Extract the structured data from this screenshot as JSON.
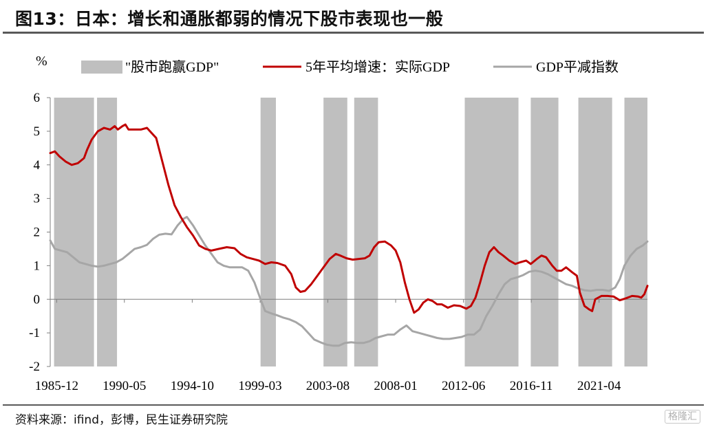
{
  "header": {
    "title": "图13：日本：增长和通胀都弱的情况下股市表现也一般"
  },
  "footer": {
    "source": "资料来源：ifind，彭博，民生证券研究院",
    "watermark": "格隆汇"
  },
  "chart_data": {
    "type": "line",
    "unit_label": "%",
    "ylim": [
      -2,
      6
    ],
    "yticks": [
      "6",
      "5",
      "4",
      "3",
      "2",
      "1",
      "0",
      "-1",
      "-2"
    ],
    "xlim": [
      1985.5,
      2024.4
    ],
    "xticks": [
      {
        "label": "1985-12",
        "t": 1985.92
      },
      {
        "label": "1990-05",
        "t": 1990.33
      },
      {
        "label": "1994-10",
        "t": 1994.75
      },
      {
        "label": "1999-03",
        "t": 1999.17
      },
      {
        "label": "2003-08",
        "t": 2003.58
      },
      {
        "label": "2008-01",
        "t": 2008.0
      },
      {
        "label": "2012-06",
        "t": 2012.42
      },
      {
        "label": "2016-11",
        "t": 2016.83
      },
      {
        "label": "2021-04",
        "t": 2021.25
      }
    ],
    "legend": {
      "placement": "top",
      "shade_label": "\"股市跑赢GDP\""
    },
    "colors": {
      "shade": "#bfbfbf",
      "real_gdp": "#c00000",
      "deflator": "#a6a6a6",
      "axis": "#7f7f7f"
    },
    "shaded_periods": [
      [
        1985.75,
        1988.35
      ],
      [
        1988.55,
        1989.85
      ],
      [
        1999.2,
        2000.2
      ],
      [
        2003.3,
        2004.85
      ],
      [
        2005.3,
        2006.85
      ],
      [
        2012.5,
        2016.0
      ],
      [
        2016.8,
        2018.6
      ],
      [
        2019.9,
        2022.1
      ],
      [
        2022.9,
        2024.7
      ]
    ],
    "series": [
      {
        "name": "5年平均增速：实际GDP",
        "key": "real_gdp",
        "points": [
          [
            1985.5,
            4.35
          ],
          [
            1985.8,
            4.4
          ],
          [
            1986.1,
            4.25
          ],
          [
            1986.5,
            4.1
          ],
          [
            1986.9,
            4.0
          ],
          [
            1987.3,
            4.05
          ],
          [
            1987.7,
            4.2
          ],
          [
            1987.9,
            4.45
          ],
          [
            1988.2,
            4.75
          ],
          [
            1988.6,
            5.0
          ],
          [
            1989.0,
            5.1
          ],
          [
            1989.4,
            5.05
          ],
          [
            1989.7,
            5.15
          ],
          [
            1989.9,
            5.05
          ],
          [
            1990.2,
            5.15
          ],
          [
            1990.4,
            5.2
          ],
          [
            1990.6,
            5.05
          ],
          [
            1991.0,
            5.05
          ],
          [
            1991.4,
            5.05
          ],
          [
            1991.8,
            5.1
          ],
          [
            1992.0,
            5.0
          ],
          [
            1992.4,
            4.8
          ],
          [
            1992.8,
            4.1
          ],
          [
            1993.2,
            3.4
          ],
          [
            1993.6,
            2.8
          ],
          [
            1994.0,
            2.45
          ],
          [
            1994.4,
            2.15
          ],
          [
            1994.8,
            1.9
          ],
          [
            1995.2,
            1.6
          ],
          [
            1995.6,
            1.5
          ],
          [
            1996.0,
            1.45
          ],
          [
            1996.5,
            1.5
          ],
          [
            1997.0,
            1.55
          ],
          [
            1997.5,
            1.52
          ],
          [
            1997.9,
            1.35
          ],
          [
            1998.3,
            1.25
          ],
          [
            1998.7,
            1.2
          ],
          [
            1999.1,
            1.15
          ],
          [
            1999.5,
            1.05
          ],
          [
            1999.9,
            1.1
          ],
          [
            2000.3,
            1.08
          ],
          [
            2000.8,
            1.0
          ],
          [
            2001.2,
            0.75
          ],
          [
            2001.5,
            0.35
          ],
          [
            2001.8,
            0.22
          ],
          [
            2002.1,
            0.25
          ],
          [
            2002.5,
            0.45
          ],
          [
            2002.9,
            0.7
          ],
          [
            2003.3,
            0.95
          ],
          [
            2003.7,
            1.2
          ],
          [
            2004.1,
            1.35
          ],
          [
            2004.4,
            1.3
          ],
          [
            2004.8,
            1.22
          ],
          [
            2005.2,
            1.18
          ],
          [
            2005.6,
            1.2
          ],
          [
            2006.0,
            1.22
          ],
          [
            2006.3,
            1.3
          ],
          [
            2006.6,
            1.55
          ],
          [
            2006.9,
            1.7
          ],
          [
            2007.3,
            1.72
          ],
          [
            2007.7,
            1.6
          ],
          [
            2008.0,
            1.45
          ],
          [
            2008.3,
            1.1
          ],
          [
            2008.6,
            0.5
          ],
          [
            2008.9,
            0.0
          ],
          [
            2009.2,
            -0.4
          ],
          [
            2009.5,
            -0.3
          ],
          [
            2009.8,
            -0.1
          ],
          [
            2010.1,
            0.0
          ],
          [
            2010.4,
            -0.05
          ],
          [
            2010.7,
            -0.15
          ],
          [
            2011.0,
            -0.15
          ],
          [
            2011.4,
            -0.25
          ],
          [
            2011.8,
            -0.18
          ],
          [
            2012.2,
            -0.2
          ],
          [
            2012.6,
            -0.28
          ],
          [
            2012.9,
            -0.2
          ],
          [
            2013.2,
            0.05
          ],
          [
            2013.5,
            0.5
          ],
          [
            2013.8,
            1.0
          ],
          [
            2014.1,
            1.4
          ],
          [
            2014.4,
            1.55
          ],
          [
            2014.7,
            1.4
          ],
          [
            2015.0,
            1.3
          ],
          [
            2015.4,
            1.15
          ],
          [
            2015.8,
            1.05
          ],
          [
            2016.1,
            1.1
          ],
          [
            2016.5,
            1.15
          ],
          [
            2016.8,
            1.05
          ],
          [
            2017.2,
            1.2
          ],
          [
            2017.5,
            1.3
          ],
          [
            2017.8,
            1.25
          ],
          [
            2018.2,
            1.0
          ],
          [
            2018.5,
            0.85
          ],
          [
            2018.8,
            0.85
          ],
          [
            2019.1,
            0.95
          ],
          [
            2019.5,
            0.8
          ],
          [
            2019.8,
            0.7
          ],
          [
            2020.0,
            0.2
          ],
          [
            2020.3,
            -0.2
          ],
          [
            2020.6,
            -0.3
          ],
          [
            2020.8,
            -0.35
          ],
          [
            2021.0,
            0.0
          ],
          [
            2021.4,
            0.1
          ],
          [
            2021.8,
            0.1
          ],
          [
            2022.2,
            0.08
          ],
          [
            2022.6,
            -0.03
          ],
          [
            2023.0,
            0.03
          ],
          [
            2023.4,
            0.1
          ],
          [
            2023.8,
            0.08
          ],
          [
            2024.0,
            0.05
          ],
          [
            2024.2,
            0.15
          ],
          [
            2024.4,
            0.4
          ]
        ]
      },
      {
        "name": "GDP平减指数",
        "key": "deflator",
        "points": [
          [
            1985.5,
            1.75
          ],
          [
            1985.8,
            1.5
          ],
          [
            1986.2,
            1.45
          ],
          [
            1986.6,
            1.4
          ],
          [
            1987.0,
            1.25
          ],
          [
            1987.4,
            1.1
          ],
          [
            1987.8,
            1.05
          ],
          [
            1988.2,
            1.0
          ],
          [
            1988.6,
            0.97
          ],
          [
            1989.0,
            1.0
          ],
          [
            1989.4,
            1.05
          ],
          [
            1989.8,
            1.1
          ],
          [
            1990.2,
            1.2
          ],
          [
            1990.6,
            1.35
          ],
          [
            1991.0,
            1.5
          ],
          [
            1991.4,
            1.55
          ],
          [
            1991.8,
            1.62
          ],
          [
            1992.2,
            1.8
          ],
          [
            1992.6,
            1.92
          ],
          [
            1993.0,
            1.95
          ],
          [
            1993.4,
            1.93
          ],
          [
            1993.8,
            2.2
          ],
          [
            1994.2,
            2.4
          ],
          [
            1994.4,
            2.45
          ],
          [
            1994.8,
            2.2
          ],
          [
            1995.2,
            1.9
          ],
          [
            1995.6,
            1.6
          ],
          [
            1996.0,
            1.35
          ],
          [
            1996.4,
            1.1
          ],
          [
            1996.8,
            1.0
          ],
          [
            1997.2,
            0.95
          ],
          [
            1997.6,
            0.95
          ],
          [
            1998.0,
            0.95
          ],
          [
            1998.4,
            0.85
          ],
          [
            1998.8,
            0.5
          ],
          [
            1999.2,
            0.0
          ],
          [
            1999.5,
            -0.35
          ],
          [
            1999.9,
            -0.42
          ],
          [
            2000.3,
            -0.48
          ],
          [
            2000.7,
            -0.55
          ],
          [
            2001.1,
            -0.6
          ],
          [
            2001.5,
            -0.68
          ],
          [
            2001.9,
            -0.8
          ],
          [
            2002.3,
            -1.0
          ],
          [
            2002.7,
            -1.2
          ],
          [
            2003.1,
            -1.28
          ],
          [
            2003.5,
            -1.35
          ],
          [
            2003.9,
            -1.38
          ],
          [
            2004.3,
            -1.38
          ],
          [
            2004.7,
            -1.3
          ],
          [
            2005.1,
            -1.28
          ],
          [
            2005.5,
            -1.3
          ],
          [
            2005.9,
            -1.3
          ],
          [
            2006.3,
            -1.25
          ],
          [
            2006.7,
            -1.15
          ],
          [
            2007.1,
            -1.1
          ],
          [
            2007.5,
            -1.05
          ],
          [
            2007.9,
            -1.05
          ],
          [
            2008.3,
            -0.9
          ],
          [
            2008.7,
            -0.78
          ],
          [
            2009.1,
            -0.95
          ],
          [
            2009.5,
            -1.0
          ],
          [
            2009.9,
            -1.05
          ],
          [
            2010.3,
            -1.1
          ],
          [
            2010.7,
            -1.15
          ],
          [
            2011.1,
            -1.18
          ],
          [
            2011.5,
            -1.18
          ],
          [
            2011.9,
            -1.15
          ],
          [
            2012.3,
            -1.12
          ],
          [
            2012.7,
            -1.05
          ],
          [
            2013.1,
            -1.05
          ],
          [
            2013.5,
            -0.9
          ],
          [
            2013.9,
            -0.5
          ],
          [
            2014.3,
            -0.2
          ],
          [
            2014.7,
            0.15
          ],
          [
            2015.1,
            0.45
          ],
          [
            2015.5,
            0.6
          ],
          [
            2015.9,
            0.65
          ],
          [
            2016.3,
            0.72
          ],
          [
            2016.7,
            0.82
          ],
          [
            2017.1,
            0.85
          ],
          [
            2017.5,
            0.82
          ],
          [
            2017.9,
            0.75
          ],
          [
            2018.3,
            0.65
          ],
          [
            2018.7,
            0.55
          ],
          [
            2019.1,
            0.45
          ],
          [
            2019.5,
            0.4
          ],
          [
            2019.9,
            0.32
          ],
          [
            2020.3,
            0.27
          ],
          [
            2020.7,
            0.25
          ],
          [
            2021.1,
            0.28
          ],
          [
            2021.5,
            0.28
          ],
          [
            2021.9,
            0.25
          ],
          [
            2022.3,
            0.35
          ],
          [
            2022.6,
            0.6
          ],
          [
            2022.9,
            1.0
          ],
          [
            2023.3,
            1.3
          ],
          [
            2023.7,
            1.5
          ],
          [
            2024.1,
            1.6
          ],
          [
            2024.4,
            1.72
          ]
        ]
      }
    ]
  }
}
